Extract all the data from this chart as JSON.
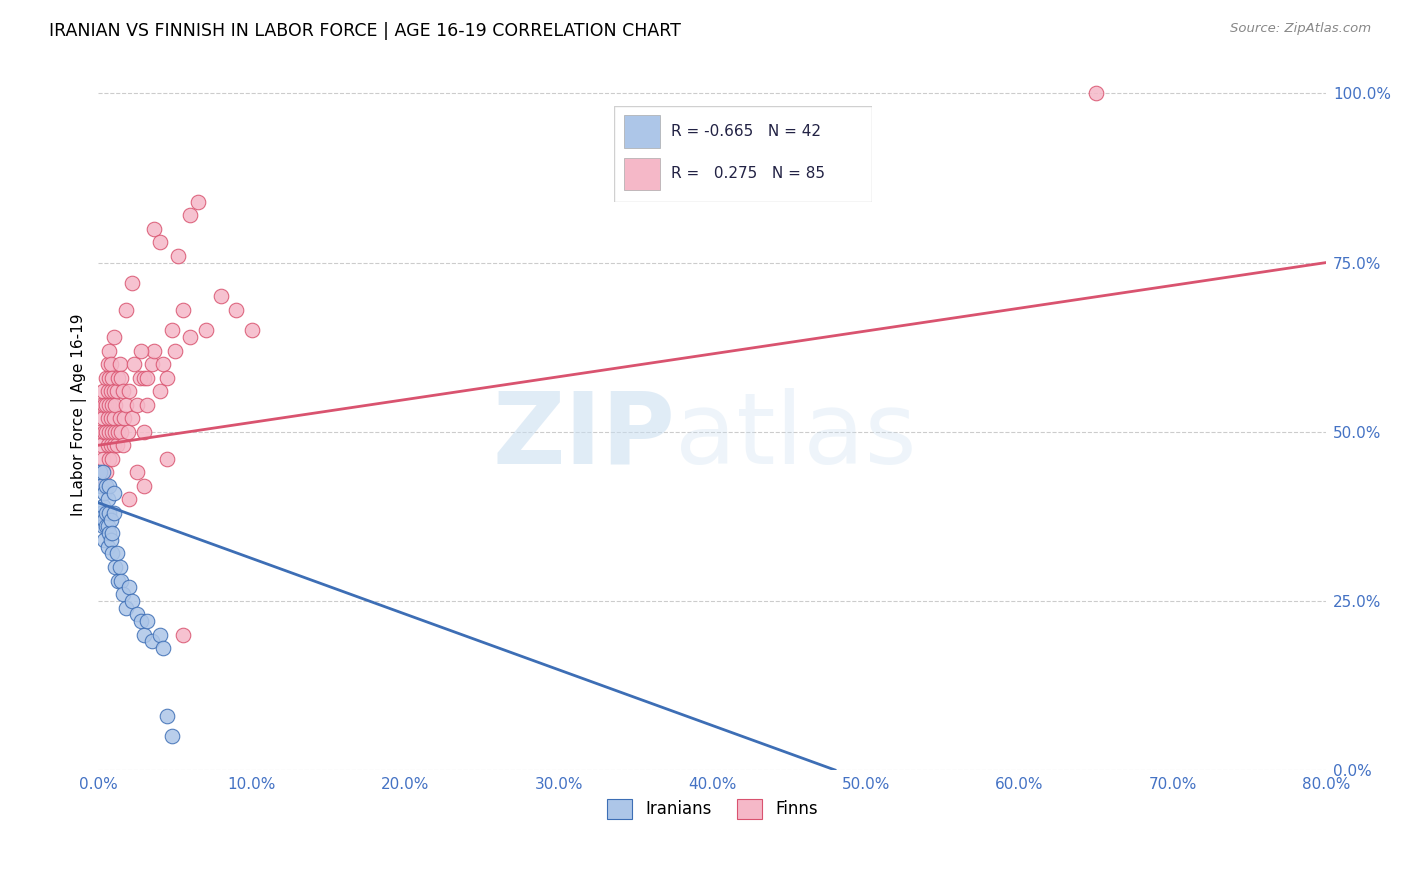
{
  "title": "IRANIAN VS FINNISH IN LABOR FORCE | AGE 16-19 CORRELATION CHART",
  "source": "Source: ZipAtlas.com",
  "ylabel_label": "In Labor Force | Age 16-19",
  "xmin": 0.0,
  "xmax": 0.8,
  "ymin": 0.0,
  "ymax": 1.05,
  "blue_color": "#adc6e8",
  "pink_color": "#f5b8c8",
  "blue_line_color": "#3d6eb5",
  "pink_line_color": "#d9536f",
  "R_blue": -0.665,
  "N_blue": 42,
  "R_pink": 0.275,
  "N_pink": 85,
  "iranians_x": [
    0.001,
    0.002,
    0.002,
    0.003,
    0.003,
    0.003,
    0.004,
    0.004,
    0.004,
    0.005,
    0.005,
    0.005,
    0.006,
    0.006,
    0.006,
    0.007,
    0.007,
    0.007,
    0.008,
    0.008,
    0.009,
    0.009,
    0.01,
    0.01,
    0.011,
    0.012,
    0.013,
    0.014,
    0.015,
    0.016,
    0.018,
    0.02,
    0.022,
    0.025,
    0.028,
    0.03,
    0.032,
    0.035,
    0.04,
    0.042,
    0.045,
    0.048
  ],
  "iranians_y": [
    0.44,
    0.38,
    0.42,
    0.36,
    0.39,
    0.44,
    0.34,
    0.37,
    0.41,
    0.36,
    0.38,
    0.42,
    0.33,
    0.36,
    0.4,
    0.35,
    0.38,
    0.42,
    0.34,
    0.37,
    0.32,
    0.35,
    0.38,
    0.41,
    0.3,
    0.32,
    0.28,
    0.3,
    0.28,
    0.26,
    0.24,
    0.27,
    0.25,
    0.23,
    0.22,
    0.2,
    0.22,
    0.19,
    0.2,
    0.18,
    0.08,
    0.05
  ],
  "finns_x": [
    0.001,
    0.002,
    0.002,
    0.003,
    0.003,
    0.003,
    0.004,
    0.004,
    0.004,
    0.005,
    0.005,
    0.005,
    0.005,
    0.006,
    0.006,
    0.006,
    0.006,
    0.007,
    0.007,
    0.007,
    0.007,
    0.007,
    0.008,
    0.008,
    0.008,
    0.008,
    0.009,
    0.009,
    0.009,
    0.009,
    0.01,
    0.01,
    0.01,
    0.01,
    0.011,
    0.011,
    0.012,
    0.012,
    0.013,
    0.013,
    0.014,
    0.014,
    0.015,
    0.015,
    0.016,
    0.016,
    0.017,
    0.018,
    0.019,
    0.02,
    0.022,
    0.023,
    0.025,
    0.027,
    0.03,
    0.03,
    0.032,
    0.035,
    0.036,
    0.04,
    0.042,
    0.045,
    0.05,
    0.055,
    0.06,
    0.065,
    0.07,
    0.08,
    0.09,
    0.1,
    0.02,
    0.03,
    0.025,
    0.045,
    0.055,
    0.018,
    0.022,
    0.028,
    0.032,
    0.036,
    0.04,
    0.048,
    0.052,
    0.06,
    0.65
  ],
  "finns_y": [
    0.5,
    0.54,
    0.48,
    0.52,
    0.56,
    0.46,
    0.5,
    0.54,
    0.42,
    0.5,
    0.54,
    0.58,
    0.44,
    0.48,
    0.52,
    0.56,
    0.6,
    0.46,
    0.5,
    0.54,
    0.58,
    0.62,
    0.48,
    0.52,
    0.56,
    0.6,
    0.46,
    0.5,
    0.54,
    0.58,
    0.48,
    0.52,
    0.56,
    0.64,
    0.5,
    0.54,
    0.48,
    0.56,
    0.5,
    0.58,
    0.52,
    0.6,
    0.5,
    0.58,
    0.48,
    0.56,
    0.52,
    0.54,
    0.5,
    0.56,
    0.52,
    0.6,
    0.54,
    0.58,
    0.5,
    0.58,
    0.54,
    0.6,
    0.62,
    0.56,
    0.6,
    0.58,
    0.62,
    0.68,
    0.64,
    0.84,
    0.65,
    0.7,
    0.68,
    0.65,
    0.4,
    0.42,
    0.44,
    0.46,
    0.2,
    0.68,
    0.72,
    0.62,
    0.58,
    0.8,
    0.78,
    0.65,
    0.76,
    0.82,
    1.0
  ],
  "blue_regression_x0": 0.0,
  "blue_regression_y0": 0.395,
  "blue_regression_x1": 0.48,
  "blue_regression_y1": 0.0,
  "pink_regression_x0": 0.0,
  "pink_regression_y0": 0.48,
  "pink_regression_x1": 0.8,
  "pink_regression_y1": 0.75
}
